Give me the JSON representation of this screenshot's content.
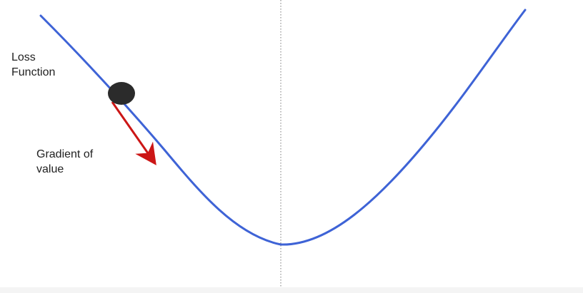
{
  "labels": {
    "loss_line1": "Loss",
    "loss_line2": "Function",
    "gradient_line1": "Gradient of",
    "gradient_line2": "value"
  },
  "colors": {
    "curve": "#3e63d6",
    "ball": "#2b2b2b",
    "arrow": "#cc1616",
    "axis": "#777777",
    "text": "#222222"
  }
}
